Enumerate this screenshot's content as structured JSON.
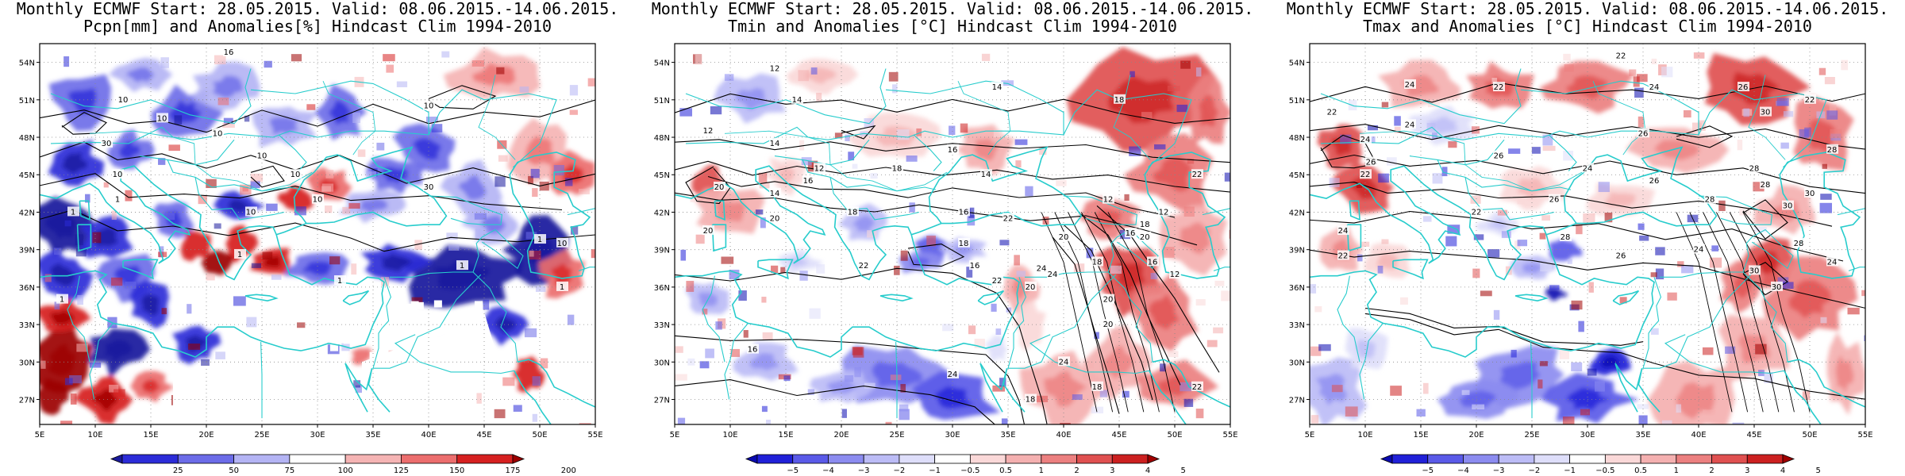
{
  "header": "Monthly ECMWF Start: 28.05.2015. Valid: 08.06.2015.-14.06.2015.",
  "panels": [
    {
      "title": "Pcpn[mm] and Anomalies[%] Hindcast Clim 1994-2010",
      "variable": "precip",
      "colorbar": [
        "25",
        "50",
        "75",
        "100",
        "125",
        "150",
        "175",
        "200"
      ],
      "contour_labels": [
        "16",
        "10",
        "10",
        "10",
        "30",
        "10",
        "10",
        "10",
        "30",
        "10",
        "10",
        "1",
        "1",
        "10",
        "10",
        "1",
        "1",
        "1",
        "1",
        "1",
        "1"
      ]
    },
    {
      "title": "Tmin and Anomalies [°C] Hindcast Clim 1994-2010",
      "variable": "tmin",
      "colorbar": [
        "−5",
        "−4",
        "−3",
        "−2",
        "−1",
        "−0.5",
        "0.5",
        "1",
        "2",
        "3",
        "4",
        "5"
      ],
      "contour_labels": [
        "12",
        "14",
        "14",
        "12",
        "14",
        "16",
        "18",
        "12",
        "14",
        "22",
        "20",
        "18",
        "16",
        "14",
        "12",
        "16",
        "20",
        "18",
        "22",
        "16",
        "20",
        "18",
        "12",
        "20",
        "18",
        "16",
        "22",
        "24",
        "20",
        "18",
        "16",
        "12",
        "20",
        "22",
        "24",
        "20",
        "20",
        "24",
        "22",
        "24",
        "18",
        "18",
        "16"
      ]
    },
    {
      "title": "Tmax and Anomalies [°C] Hindcast Clim 1994-2010",
      "variable": "tmax",
      "colorbar": [
        "−5",
        "−4",
        "−3",
        "−2",
        "−1",
        "−0.5",
        "0.5",
        "1",
        "2",
        "3",
        "4",
        "5"
      ],
      "contour_labels": [
        "22",
        "24",
        "22",
        "24",
        "26",
        "22",
        "24",
        "26",
        "28",
        "30",
        "22",
        "24",
        "26",
        "26",
        "28",
        "22",
        "24",
        "26",
        "28",
        "30",
        "22",
        "26",
        "28",
        "30",
        "24",
        "28",
        "26",
        "24",
        "30",
        "28",
        "24",
        "30",
        "22"
      ]
    }
  ],
  "lat_labels": [
    "54N",
    "51N",
    "48N",
    "45N",
    "42N",
    "39N",
    "36N",
    "33N",
    "30N",
    "27N"
  ],
  "lon_labels": [
    "5E",
    "10E",
    "15E",
    "20E",
    "25E",
    "30E",
    "35E",
    "40E",
    "45E",
    "50E",
    "55E"
  ],
  "colors": {
    "precip_scale": [
      "#1a1a9c",
      "#2c2cd8",
      "#6c6ce8",
      "#b4b4f4",
      "#ffffff",
      "#f5b4b4",
      "#ec6e6e",
      "#d62020",
      "#9c0000"
    ],
    "temp_scale": [
      "#0a0ab0",
      "#2020d8",
      "#5a5ae8",
      "#8c8cf0",
      "#bcbcf6",
      "#dedefa",
      "#ffffff",
      "#fad8d8",
      "#f4b0b0",
      "#ec8080",
      "#e05050",
      "#cc2020",
      "#a00000"
    ],
    "coast": "#27cccc",
    "contour": "#000000"
  }
}
